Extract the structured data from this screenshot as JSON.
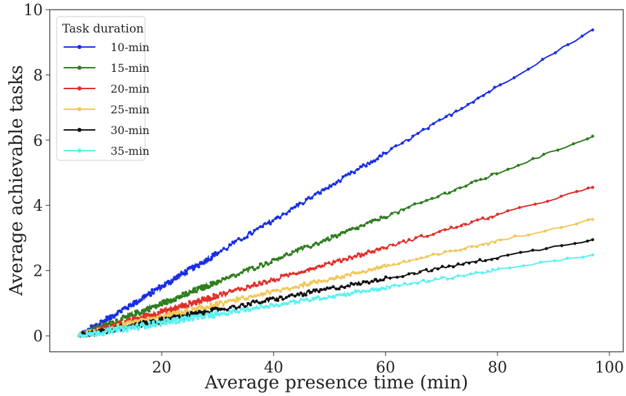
{
  "chart_data": {
    "type": "line",
    "title": "",
    "xlabel": "Average presence time (min)",
    "ylabel": "Average achievable tasks",
    "xlim": [
      0,
      100
    ],
    "ylim": [
      -0.5,
      10
    ],
    "xticks": [
      20,
      40,
      60,
      80,
      100
    ],
    "yticks": [
      0,
      2,
      4,
      6,
      8,
      10
    ],
    "grid": false,
    "legend": {
      "title": "Task duration",
      "placement": "top-left"
    },
    "series": [
      {
        "name": "10-min",
        "color": "#1a2ee6",
        "x": [
          5.2,
          97
        ],
        "y": [
          0,
          9.38
        ]
      },
      {
        "name": "15-min",
        "color": "#2e7d1e",
        "x": [
          5.2,
          97
        ],
        "y": [
          0,
          6.12
        ]
      },
      {
        "name": "20-min",
        "color": "#e0302a",
        "x": [
          5.2,
          97
        ],
        "y": [
          0,
          4.55
        ]
      },
      {
        "name": "25-min",
        "color": "#f0c85a",
        "x": [
          5.2,
          97
        ],
        "y": [
          0,
          3.57
        ]
      },
      {
        "name": "30-min",
        "color": "#111111",
        "x": [
          5.2,
          97
        ],
        "y": [
          0,
          2.95
        ]
      },
      {
        "name": "35-min",
        "color": "#5ef0f0",
        "x": [
          5.2,
          97
        ],
        "y": [
          0,
          2.48
        ]
      }
    ]
  }
}
